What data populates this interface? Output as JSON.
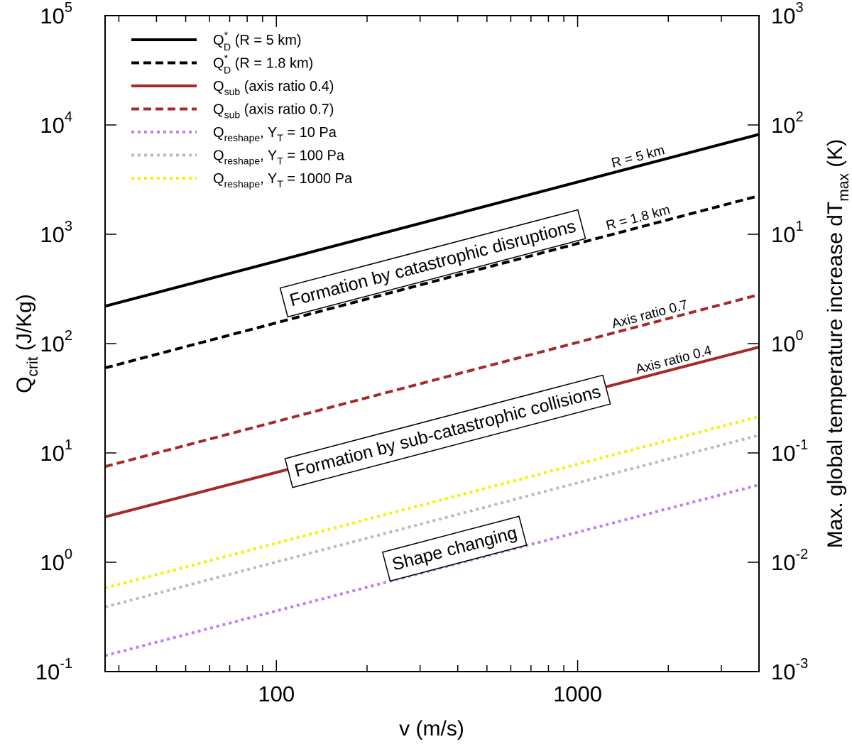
{
  "chart_data": {
    "type": "line",
    "x_scale": "log",
    "y_scale": "log",
    "xlim": [
      27,
      4000
    ],
    "ylim": [
      0.1,
      100000
    ],
    "y2lim": [
      0.001,
      1000
    ],
    "xlabel": "v (m/s)",
    "ylabel": {
      "main": "Q",
      "sub": "crit",
      "rest": " (J/Kg)"
    },
    "y2label": {
      "main": "Max. global temperature increase dT",
      "sub": "max",
      "rest": " (K)"
    },
    "x_ticks": [
      {
        "value": 100,
        "label": "100"
      },
      {
        "value": 1000,
        "label": "1000"
      }
    ],
    "y_ticks": [
      {
        "value": 0.1,
        "base": "10",
        "exp": "-1"
      },
      {
        "value": 1,
        "base": "10",
        "exp": "0"
      },
      {
        "value": 10,
        "base": "10",
        "exp": "1"
      },
      {
        "value": 100,
        "base": "10",
        "exp": "2"
      },
      {
        "value": 1000,
        "base": "10",
        "exp": "3"
      },
      {
        "value": 10000,
        "base": "10",
        "exp": "4"
      },
      {
        "value": 100000,
        "base": "10",
        "exp": "5"
      }
    ],
    "y2_ticks": [
      {
        "value": 0.001,
        "base": "10",
        "exp": "-3"
      },
      {
        "value": 0.01,
        "base": "10",
        "exp": "-2"
      },
      {
        "value": 0.1,
        "base": "10",
        "exp": "-1"
      },
      {
        "value": 1,
        "base": "10",
        "exp": "0"
      },
      {
        "value": 10,
        "base": "10",
        "exp": "1"
      },
      {
        "value": 100,
        "base": "10",
        "exp": "2"
      },
      {
        "value": 1000,
        "base": "10",
        "exp": "3"
      }
    ],
    "series": [
      {
        "id": "qd-5km",
        "x": [
          27,
          4000
        ],
        "y": [
          220,
          8200
        ],
        "color": "#000000",
        "dash": "solid",
        "legend": {
          "main": "Q",
          "sup": "*",
          "sub": "D",
          "mid": "",
          "sub2": "",
          "tail": " (R = 5 km)"
        }
      },
      {
        "id": "qd-1_8km",
        "x": [
          27,
          4000
        ],
        "y": [
          60,
          2250
        ],
        "color": "#000000",
        "dash": "dashed",
        "legend": {
          "main": "Q",
          "sup": "*",
          "sub": "D",
          "mid": "",
          "sub2": "",
          "tail": " (R = 1.8 km)"
        }
      },
      {
        "id": "qsub-0_4",
        "x": [
          27,
          4000
        ],
        "y": [
          2.6,
          93
        ],
        "color": "#a52a2a",
        "dash": "solid",
        "legend": {
          "main": "Q",
          "sup": "",
          "sub": "sub",
          "mid": "",
          "sub2": "",
          "tail": " (axis ratio 0.4)"
        }
      },
      {
        "id": "qsub-0_7",
        "x": [
          27,
          4000
        ],
        "y": [
          7.5,
          280
        ],
        "color": "#a52a2a",
        "dash": "dashed",
        "legend": {
          "main": "Q",
          "sup": "",
          "sub": "sub",
          "mid": "",
          "sub2": "",
          "tail": "  (axis ratio 0.7)"
        }
      },
      {
        "id": "qreshape-10",
        "x": [
          27,
          4000
        ],
        "y": [
          0.14,
          5.1
        ],
        "color": "#bf7ff0",
        "dash": "dotted",
        "legend": {
          "main": "Q",
          "sup": "",
          "sub": "reshape",
          "mid": ", Y",
          "sub2": "T",
          "tail": " = 10 Pa"
        }
      },
      {
        "id": "qreshape-100",
        "x": [
          27,
          4000
        ],
        "y": [
          0.39,
          14.5
        ],
        "color": "#bbbbbb",
        "dash": "dotted",
        "legend": {
          "main": "Q",
          "sup": "",
          "sub": "reshape",
          "mid": ", Y",
          "sub2": "T",
          "tail": " = 100 Pa"
        }
      },
      {
        "id": "qreshape-1000",
        "x": [
          27,
          4000
        ],
        "y": [
          0.58,
          21.5
        ],
        "color": "#f2f200",
        "dash": "dotted",
        "legend": {
          "main": "Q",
          "sup": "",
          "sub": "reshape",
          "mid": ", Y",
          "sub2": "T",
          "tail": " =  1000 Pa"
        }
      }
    ],
    "curve_labels": [
      {
        "text": "R = 5 km",
        "x": 1600,
        "y": 4700
      },
      {
        "text": "R = 1.8 km",
        "x": 1600,
        "y": 1300
      },
      {
        "text": "Axis ratio 0.7",
        "x": 1750,
        "y": 170
      },
      {
        "text": "Axis ratio 0.4",
        "x": 2100,
        "y": 65
      }
    ],
    "region_labels": [
      {
        "text": "Formation by catastrophic disruptions",
        "x": 330,
        "y": 550
      },
      {
        "text": "Formation by sub-catastrophic collisions",
        "x": 370,
        "y": 16
      },
      {
        "text": "Shape changing",
        "x": 390,
        "y": 1.35
      }
    ],
    "legend_position": "top-left"
  }
}
